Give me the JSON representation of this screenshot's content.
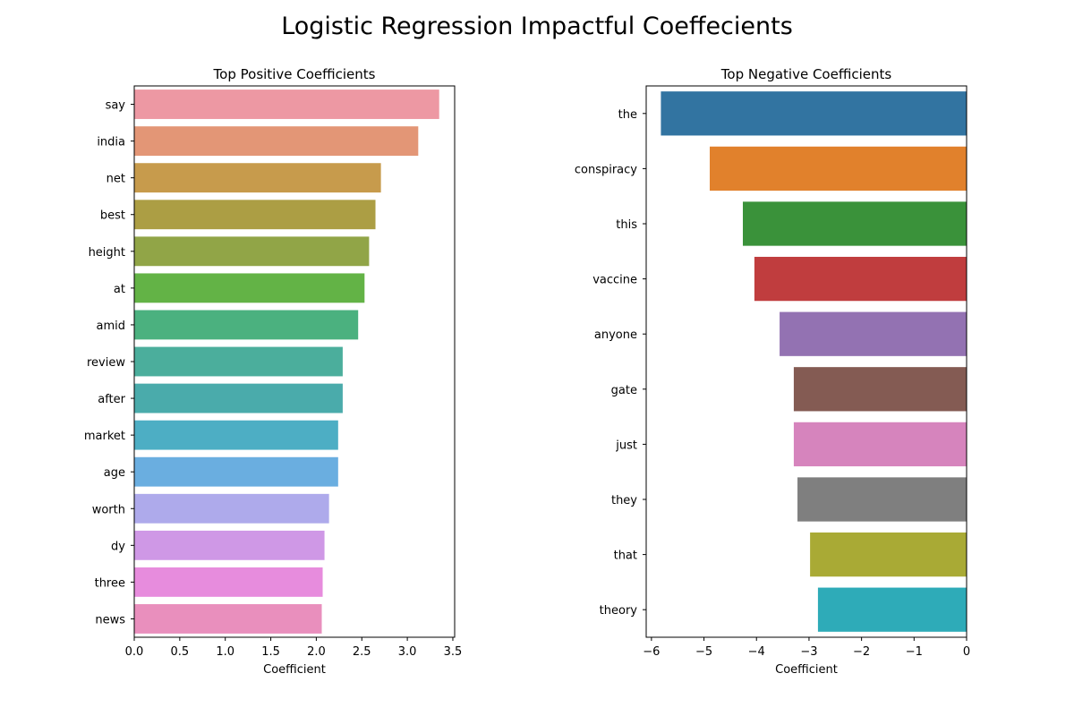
{
  "figure": {
    "title": "Logistic Regression Impactful Coeffecients"
  },
  "chart_data": [
    {
      "type": "bar",
      "orientation": "horizontal",
      "title": "Top Positive Coefficients",
      "xlabel": "Coefficient",
      "ylabel": "",
      "xlim": [
        0,
        3.52
      ],
      "xticks": [
        0.0,
        0.5,
        1.0,
        1.5,
        2.0,
        2.5,
        3.0,
        3.5
      ],
      "xtick_labels": [
        "0.0",
        "0.5",
        "1.0",
        "1.5",
        "2.0",
        "2.5",
        "3.0",
        "3.5"
      ],
      "categories": [
        "say",
        "india",
        "net",
        "best",
        "height",
        "at",
        "amid",
        "review",
        "after",
        "market",
        "age",
        "worth",
        "dy",
        "three",
        "news"
      ],
      "values": [
        3.35,
        3.12,
        2.71,
        2.65,
        2.58,
        2.53,
        2.46,
        2.29,
        2.29,
        2.24,
        2.24,
        2.14,
        2.09,
        2.07,
        2.06
      ],
      "colors": [
        "#ed98a3",
        "#e39676",
        "#c79b4c",
        "#ac9e44",
        "#91a547",
        "#63b346",
        "#4bb17f",
        "#4bae9c",
        "#4aabab",
        "#4daec4",
        "#6aaee0",
        "#aeaaeb",
        "#cf98e6",
        "#e78cdd",
        "#e98fbd"
      ]
    },
    {
      "type": "bar",
      "orientation": "horizontal",
      "title": "Top Negative Coefficients",
      "xlabel": "Coefficient",
      "ylabel": "",
      "xlim": [
        -6.1,
        0
      ],
      "xticks": [
        -6,
        -5,
        -4,
        -3,
        -2,
        -1,
        0
      ],
      "xtick_labels": [
        "−6",
        "−5",
        "−4",
        "−3",
        "−2",
        "−1",
        "0"
      ],
      "categories": [
        "the",
        "conspiracy",
        "this",
        "vaccine",
        "anyone",
        "gate",
        "just",
        "they",
        "that",
        "theory"
      ],
      "values": [
        -5.82,
        -4.89,
        -4.26,
        -4.04,
        -3.56,
        -3.29,
        -3.29,
        -3.22,
        -2.98,
        -2.83
      ],
      "colors": [
        "#3274a1",
        "#e1812c",
        "#3a923a",
        "#c03d3e",
        "#9372b2",
        "#845b53",
        "#d684bd",
        "#7f7f7f",
        "#a9aa35",
        "#2eabb8"
      ]
    }
  ]
}
